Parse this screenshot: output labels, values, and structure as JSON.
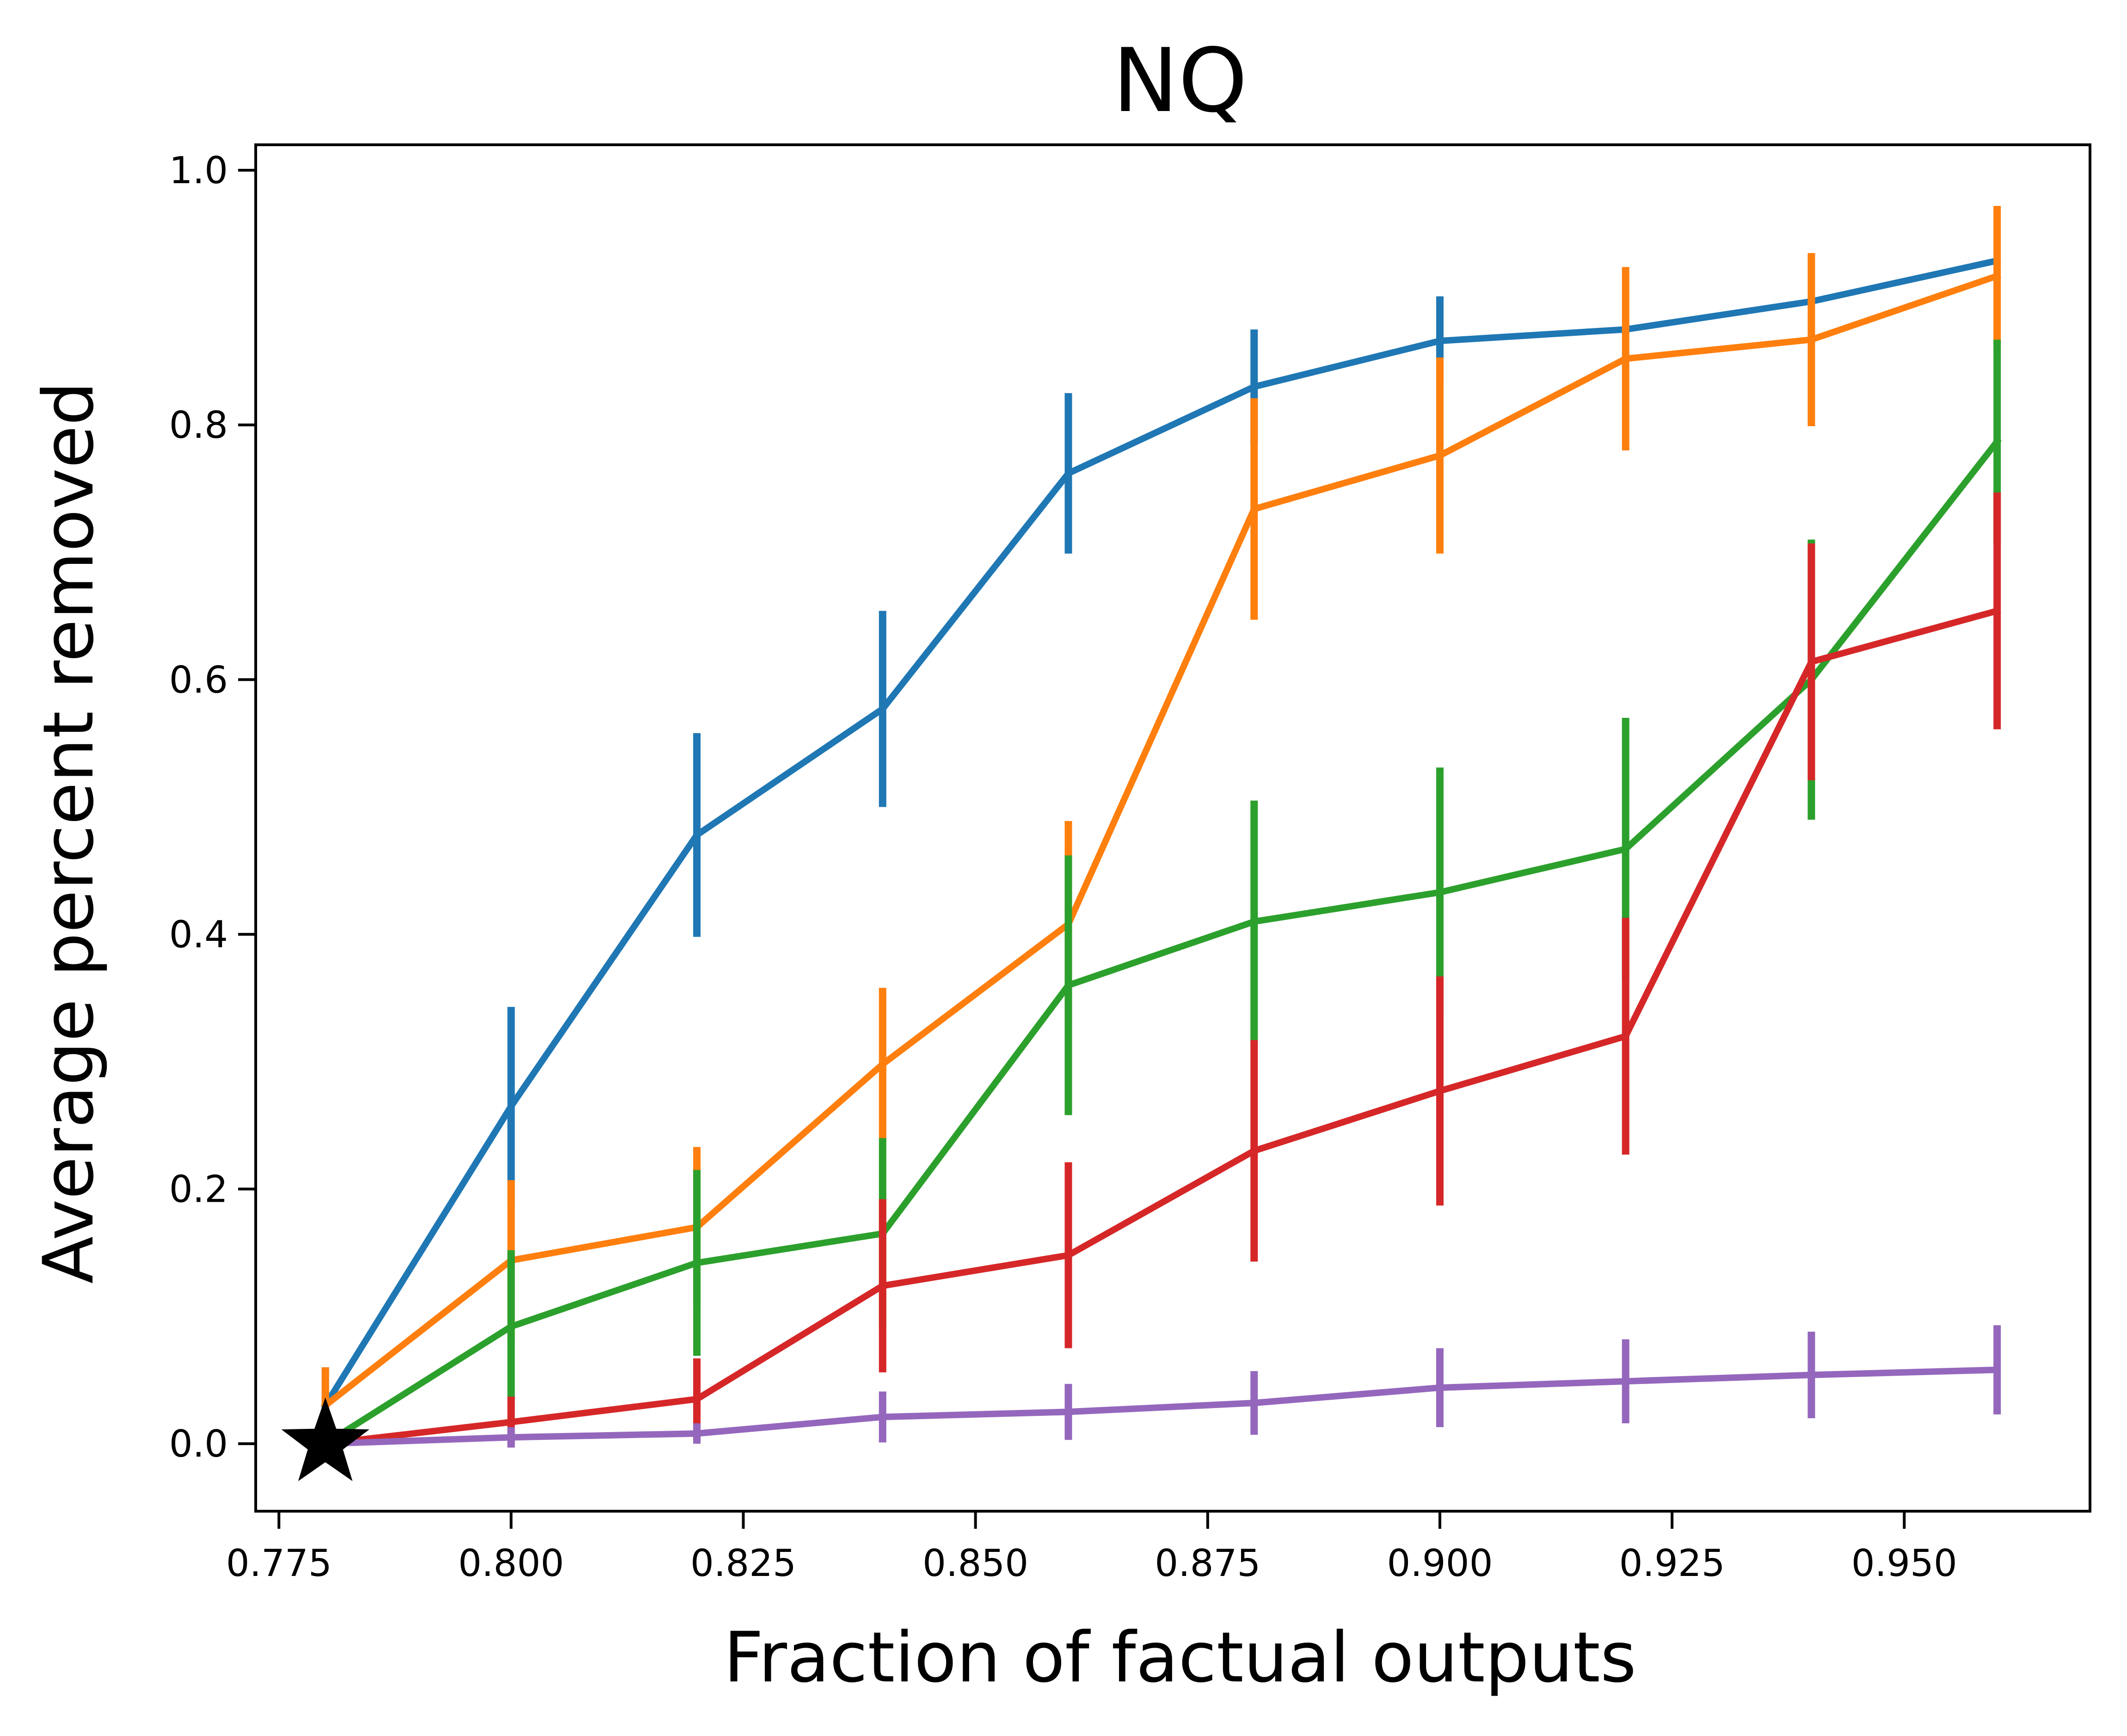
{
  "chart_data": {
    "type": "line",
    "title": "NQ",
    "xlabel": "Fraction of factual outputs",
    "ylabel": "Average percent removed",
    "xlim": [
      0.7725,
      0.97
    ],
    "ylim": [
      -0.053,
      1.02
    ],
    "xticks": [
      0.775,
      0.8,
      0.825,
      0.85,
      0.875,
      0.9,
      0.925,
      0.95
    ],
    "xtick_labels": [
      "0.775",
      "0.800",
      "0.825",
      "0.850",
      "0.875",
      "0.900",
      "0.925",
      "0.950"
    ],
    "yticks": [
      0.0,
      0.2,
      0.4,
      0.6,
      0.8,
      1.0
    ],
    "ytick_labels": [
      "0.0",
      "0.2",
      "0.4",
      "0.6",
      "0.8",
      "1.0"
    ],
    "grid": false,
    "legend": "none",
    "x": [
      0.78,
      0.8,
      0.82,
      0.84,
      0.86,
      0.88,
      0.9,
      0.92,
      0.94,
      0.96
    ],
    "series": [
      {
        "name": "blue",
        "color": "#1f77b4",
        "values": [
          0.03,
          0.265,
          0.478,
          0.577,
          0.762,
          0.83,
          0.866,
          0.875,
          0.897,
          0.929
        ],
        "errors": [
          0.03,
          0.078,
          0.08,
          0.077,
          0.063,
          0.045,
          0.035,
          0.0,
          0.0,
          0.0
        ]
      },
      {
        "name": "orange",
        "color": "#ff7f0e",
        "values": [
          0.03,
          0.144,
          0.17,
          0.298,
          0.408,
          0.734,
          0.776,
          0.852,
          0.867,
          0.917
        ],
        "errors": [
          0.03,
          0.063,
          0.063,
          0.06,
          0.081,
          0.087,
          0.077,
          0.072,
          0.068,
          0.055
        ]
      },
      {
        "name": "green",
        "color": "#2ca02c",
        "values": [
          0.0,
          0.092,
          0.142,
          0.165,
          0.36,
          0.41,
          0.433,
          0.467,
          0.6,
          0.787
        ],
        "errors": [
          0.0,
          0.06,
          0.073,
          0.075,
          0.102,
          0.095,
          0.098,
          0.103,
          0.11,
          0.08
        ]
      },
      {
        "name": "red",
        "color": "#d62728",
        "values": [
          0.0,
          0.017,
          0.035,
          0.124,
          0.148,
          0.23,
          0.277,
          0.32,
          0.614,
          0.654
        ],
        "errors": [
          0.0,
          0.02,
          0.032,
          0.068,
          0.073,
          0.087,
          0.09,
          0.093,
          0.093,
          0.093
        ]
      },
      {
        "name": "purple",
        "color": "#9467bd",
        "values": [
          0.0,
          0.005,
          0.008,
          0.021,
          0.025,
          0.032,
          0.044,
          0.049,
          0.054,
          0.058
        ],
        "errors": [
          0.0,
          0.008,
          0.008,
          0.02,
          0.022,
          0.025,
          0.031,
          0.033,
          0.034,
          0.035
        ]
      }
    ],
    "marker": {
      "x": 0.78,
      "y": 0.0,
      "symbol": "star",
      "color": "#000000"
    }
  }
}
